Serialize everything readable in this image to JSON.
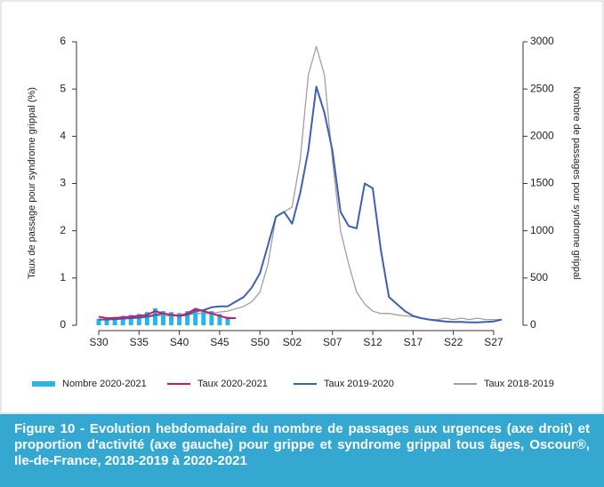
{
  "chart_data": {
    "type": "combo",
    "y_label": "Taux de passage pour syndrome grippal (%)",
    "y2_label": "Nombre de passages pour syndrome grippal",
    "caption": "Figure 10 -  Evolution hebdomadaire du nombre de passages aux urgences (axe droit) et proportion d'activité (axe gauche) pour grippe et syndrome grippal tous âges, Oscour®, Ile-de-France, 2018-2019 à 2020-2021",
    "categories": [
      "S30",
      null,
      null,
      null,
      null,
      "S35",
      null,
      null,
      null,
      null,
      "S40",
      null,
      null,
      null,
      null,
      "S45",
      null,
      null,
      null,
      null,
      "S50",
      null,
      null,
      null,
      "S02",
      null,
      null,
      null,
      null,
      "S07",
      null,
      null,
      null,
      null,
      "S12",
      null,
      null,
      null,
      null,
      "S17",
      null,
      null,
      null,
      null,
      "S22",
      null,
      null,
      null,
      null,
      "S27",
      null
    ],
    "ylim": [
      0,
      6
    ],
    "yticks": [
      0,
      1,
      2,
      3,
      4,
      5,
      6
    ],
    "y2lim": [
      0,
      3000
    ],
    "y2ticks": [
      0,
      500,
      1000,
      1500,
      2000,
      2500,
      3000
    ],
    "series": [
      {
        "name": "Nombre 2020-2021",
        "kind": "bar",
        "axis": "y2",
        "color": "#29b5e8",
        "values": [
          70,
          80,
          90,
          100,
          110,
          120,
          140,
          180,
          150,
          140,
          130,
          150,
          170,
          160,
          150,
          120,
          90,
          null,
          null,
          null,
          null,
          null,
          null,
          null,
          null,
          null,
          null,
          null,
          null,
          null,
          null,
          null,
          null,
          null,
          null,
          null,
          null,
          null,
          null,
          null,
          null,
          null,
          null,
          null,
          null,
          null,
          null,
          null,
          null,
          null,
          null
        ]
      },
      {
        "name": "Taux 2020-2021",
        "kind": "line",
        "color": "#d8145c",
        "values": [
          0.18,
          0.15,
          0.15,
          0.17,
          0.18,
          0.2,
          0.22,
          0.3,
          0.25,
          0.22,
          0.2,
          0.25,
          0.35,
          0.3,
          0.25,
          0.2,
          0.15,
          0.15,
          null,
          null,
          null,
          null,
          null,
          null,
          null,
          null,
          null,
          null,
          null,
          null,
          null,
          null,
          null,
          null,
          null,
          null,
          null,
          null,
          null,
          null,
          null,
          null,
          null,
          null,
          null,
          null,
          null,
          null,
          null,
          null,
          null
        ]
      },
      {
        "name": "Taux 2019-2020",
        "kind": "line",
        "color": "#3b62ad",
        "values": [
          0.12,
          0.12,
          0.13,
          0.14,
          0.15,
          0.16,
          0.18,
          0.22,
          0.25,
          0.22,
          0.2,
          0.22,
          0.3,
          0.32,
          0.38,
          0.4,
          0.4,
          0.5,
          0.6,
          0.8,
          1.1,
          1.7,
          2.3,
          2.4,
          2.15,
          2.8,
          3.7,
          5.05,
          4.5,
          3.7,
          2.4,
          2.1,
          2.05,
          3.0,
          2.9,
          1.6,
          0.6,
          0.45,
          0.3,
          0.2,
          0.15,
          0.12,
          0.1,
          0.08,
          0.07,
          0.07,
          0.06,
          0.06,
          0.07,
          0.08,
          0.12
        ]
      },
      {
        "name": "Taux 2018-2019",
        "kind": "line",
        "color": "#a0a0a0",
        "values": [
          0.12,
          0.12,
          0.13,
          0.14,
          0.15,
          0.15,
          0.17,
          0.2,
          0.2,
          0.2,
          0.2,
          0.22,
          0.25,
          0.25,
          0.25,
          0.28,
          0.3,
          0.35,
          0.4,
          0.5,
          0.7,
          1.3,
          2.3,
          2.4,
          2.5,
          3.5,
          5.3,
          5.9,
          5.3,
          3.5,
          2.0,
          1.3,
          0.7,
          0.45,
          0.3,
          0.25,
          0.25,
          0.22,
          0.2,
          0.18,
          0.15,
          0.12,
          0.12,
          0.15,
          0.12,
          0.15,
          0.12,
          0.15,
          0.12,
          0.12,
          0.12
        ]
      }
    ]
  }
}
